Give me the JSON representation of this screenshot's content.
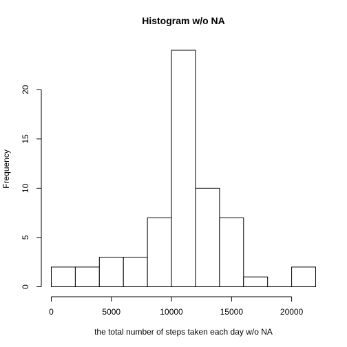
{
  "chart_data": {
    "type": "bar",
    "title": "Histogram w/o NA",
    "xlabel": "the total number of steps taken each day w/o NA",
    "ylabel": "Frequency",
    "bins": [
      {
        "from": 0,
        "to": 2000,
        "count": 2
      },
      {
        "from": 2000,
        "to": 4000,
        "count": 2
      },
      {
        "from": 4000,
        "to": 6000,
        "count": 3
      },
      {
        "from": 6000,
        "to": 8000,
        "count": 3
      },
      {
        "from": 8000,
        "to": 10000,
        "count": 7
      },
      {
        "from": 10000,
        "to": 12000,
        "count": 24
      },
      {
        "from": 12000,
        "to": 14000,
        "count": 10
      },
      {
        "from": 14000,
        "to": 16000,
        "count": 7
      },
      {
        "from": 16000,
        "to": 18000,
        "count": 1
      },
      {
        "from": 18000,
        "to": 20000,
        "count": 0
      },
      {
        "from": 20000,
        "to": 22000,
        "count": 2
      }
    ],
    "xticks": [
      0,
      5000,
      10000,
      15000,
      20000
    ],
    "xtick_labels": [
      "0",
      "5000",
      "10000",
      "15000",
      "20000"
    ],
    "yticks": [
      0,
      5,
      10,
      15,
      20
    ],
    "ytick_labels": [
      "0",
      "5",
      "10",
      "15",
      "20"
    ],
    "xlim": [
      0,
      22000
    ],
    "ylim": [
      0,
      24
    ],
    "grid": false,
    "legend": "none",
    "colors": {
      "bar_fill": "#ffffff",
      "bar_stroke": "#000000"
    }
  }
}
